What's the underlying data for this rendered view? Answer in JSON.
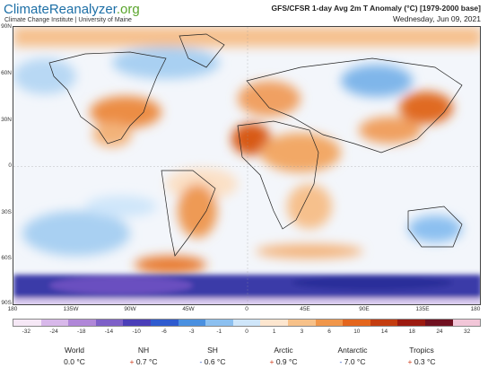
{
  "header": {
    "logo_main": "ClimateReanalyzer",
    "logo_tld": ".org",
    "institute": "Climate Change Institute | University of Maine",
    "title": "GFS/CFSR 1-day Avg 2m T Anomaly (°C) [1979-2000 base]",
    "date": "Wednesday, Jun 09, 2021"
  },
  "map": {
    "lat_labels": [
      "90N",
      "60N",
      "30N",
      "0",
      "30S",
      "60S",
      "90S"
    ],
    "lon_labels": [
      "180",
      "135W",
      "90W",
      "45W",
      "0",
      "45E",
      "90E",
      "135E",
      "180"
    ]
  },
  "colorbar": {
    "ticks": [
      "-32",
      "-24",
      "-18",
      "-14",
      "-10",
      "-6",
      "-3",
      "-1",
      "0",
      "1",
      "3",
      "6",
      "10",
      "14",
      "18",
      "24",
      "32"
    ],
    "colors": [
      "#f6e8f6",
      "#d8b8ea",
      "#b087d8",
      "#7e60c8",
      "#4a3eb8",
      "#2f5bcf",
      "#4a90e0",
      "#8cc0f0",
      "#cfe6fa",
      "#fde6cf",
      "#f7c189",
      "#f0964a",
      "#e4661d",
      "#c43d10",
      "#9c1a10",
      "#701020",
      "#f2c6d8"
    ]
  },
  "stats": [
    {
      "name": "World",
      "sign": "",
      "value": "0.0 °C"
    },
    {
      "name": "NH",
      "sign": "+",
      "value": "0.7 °C"
    },
    {
      "name": "SH",
      "sign": "-",
      "value": "0.6 °C"
    },
    {
      "name": "Arctic",
      "sign": "+",
      "value": "0.9 °C"
    },
    {
      "name": "Antarctic",
      "sign": "-",
      "value": "7.0 °C"
    },
    {
      "name": "Tropics",
      "sign": "+",
      "value": "0.3 °C"
    }
  ]
}
